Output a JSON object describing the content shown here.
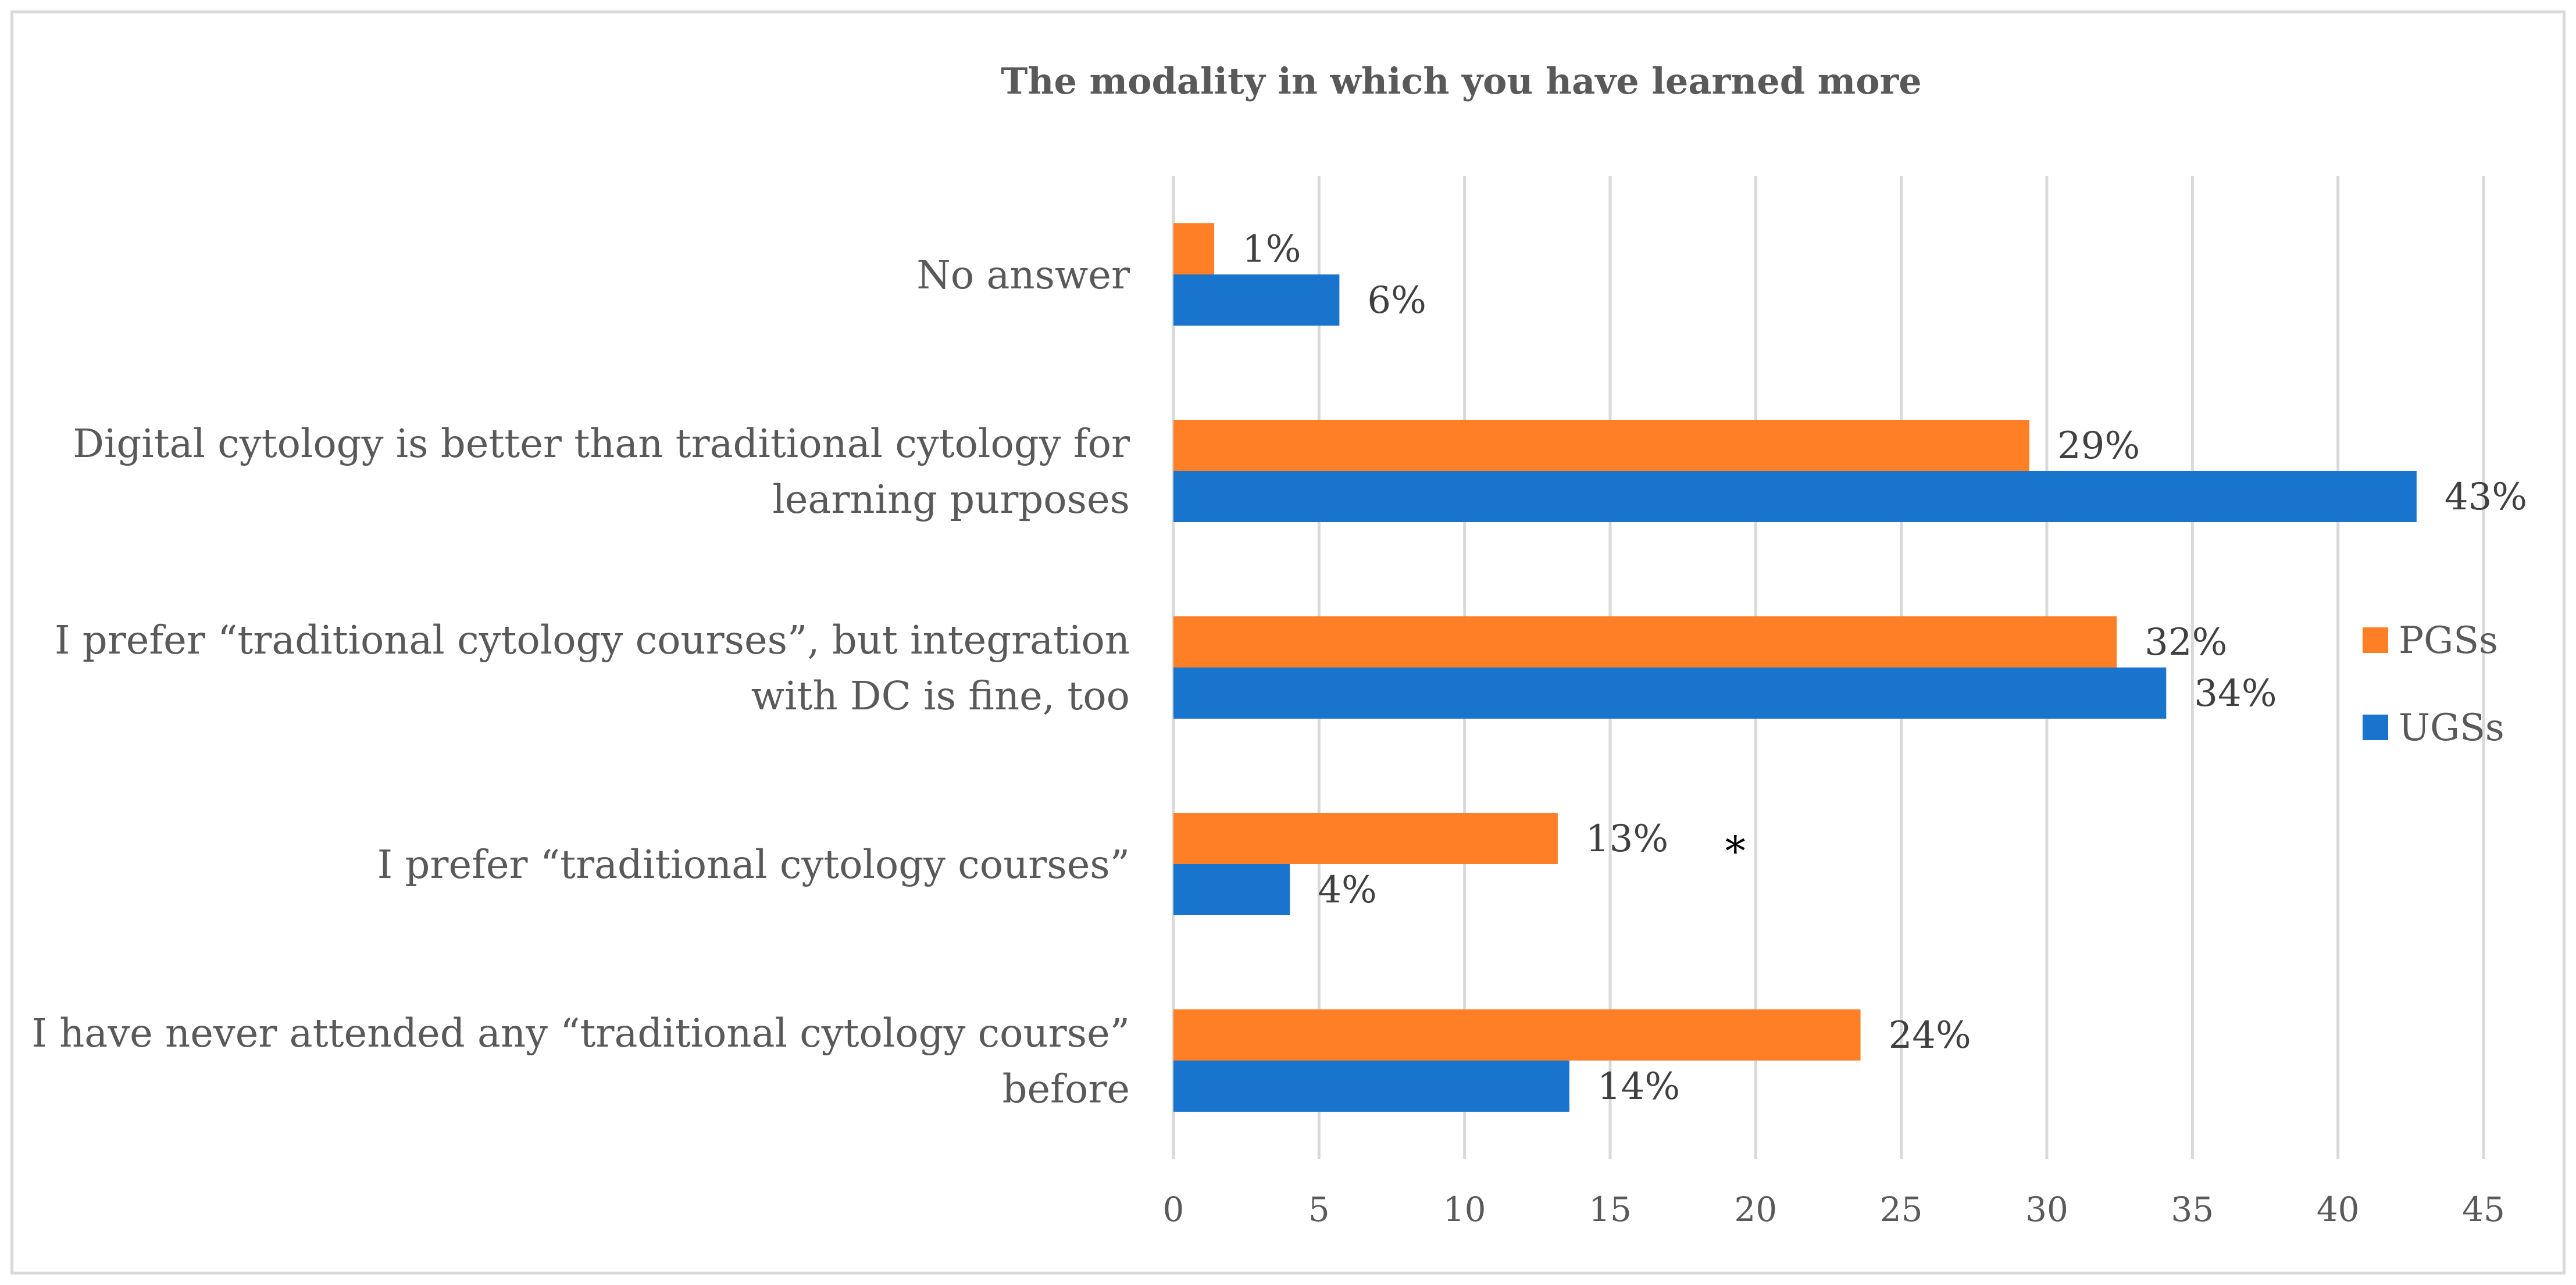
{
  "chart_data": {
    "type": "bar",
    "orientation": "horizontal",
    "title": "The modality in which you have learned more",
    "categories": [
      "No answer",
      "Digital cytology is better than traditional cytology for learning purposes",
      "I prefer “traditional cytology courses”, but integration with DC is fine, too",
      "I prefer “traditional cytology courses”",
      "I have never attended any “traditional cytology course” before"
    ],
    "category_lines": [
      [
        "No answer"
      ],
      [
        "Digital cytology is better than traditional cytology for",
        "learning purposes"
      ],
      [
        "I prefer “traditional cytology courses”, but integration",
        "with DC is fine, too"
      ],
      [
        "I prefer “traditional cytology courses”"
      ],
      [
        "I have never attended any “traditional cytology course”",
        "before"
      ]
    ],
    "series": [
      {
        "name": "PGSs",
        "color": "#ff7f27",
        "values": [
          1.4,
          29.4,
          32.4,
          13.2,
          23.6
        ],
        "labels": [
          "1%",
          "29%",
          "32%",
          "13%",
          "24%"
        ]
      },
      {
        "name": "UGSs",
        "color": "#1874cd",
        "values": [
          5.7,
          42.7,
          34.1,
          4.0,
          13.6
        ],
        "labels": [
          "6%",
          "43%",
          "34%",
          "4%",
          "14%"
        ]
      }
    ],
    "xlim": [
      0,
      45
    ],
    "xticks": [
      0,
      5,
      10,
      15,
      20,
      25,
      30,
      35,
      40,
      45
    ],
    "grid": true,
    "legend_position": "right",
    "annotations": [
      {
        "text": "*",
        "category_index": 3,
        "series_index": 0,
        "x": 19.3
      }
    ]
  }
}
